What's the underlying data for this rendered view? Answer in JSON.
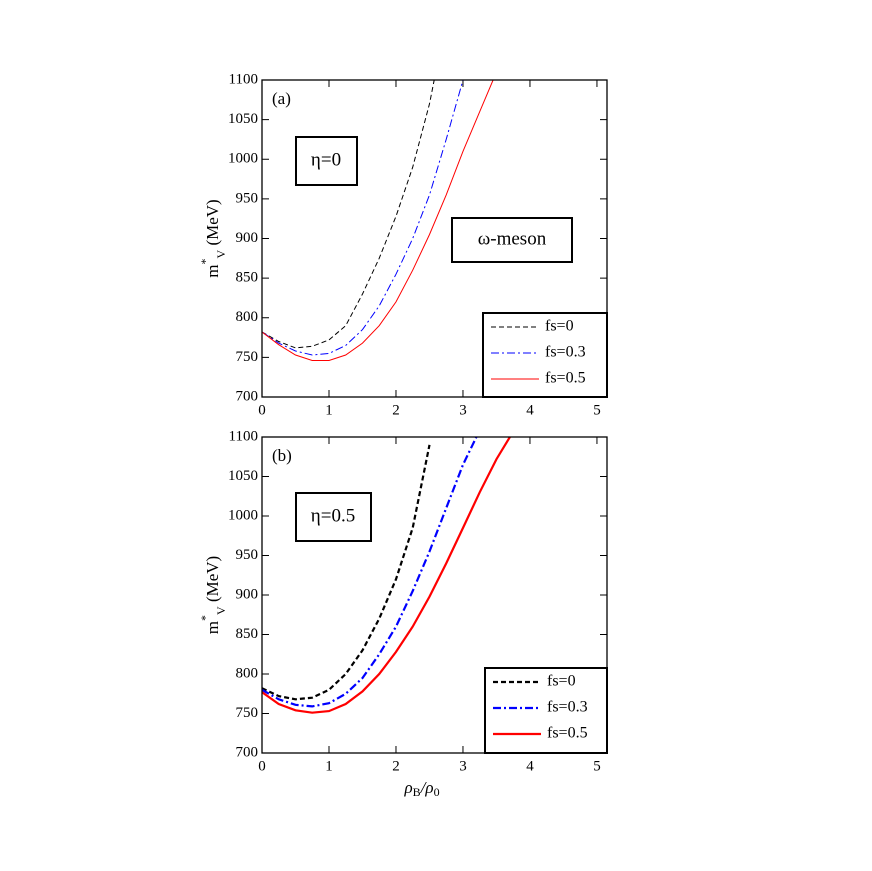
{
  "chart_data": [
    {
      "type": "line",
      "panel_label": "(a)",
      "annotations": [
        "η=0",
        "ω-meson"
      ],
      "ylabel": [
        "m",
        "*",
        "V",
        " (MeV)"
      ],
      "xlim": [
        0,
        5.15
      ],
      "ylim": [
        700,
        1100
      ],
      "xticks": [
        0,
        1,
        2,
        3,
        4,
        5
      ],
      "yticks": [
        700,
        750,
        800,
        850,
        900,
        950,
        1000,
        1050,
        1100
      ],
      "legend": "lower right",
      "line_width": 1,
      "series": [
        {
          "name": "fs=0",
          "color": "#000000",
          "dash": "dashed",
          "x": [
            0,
            0.25,
            0.5,
            0.75,
            1,
            1.25,
            1.5,
            1.75,
            2,
            2.25,
            2.5,
            2.57
          ],
          "values": [
            782,
            770,
            762,
            764,
            772,
            790,
            830,
            875,
            928,
            990,
            1070,
            1100
          ]
        },
        {
          "name": "fs=0.3",
          "color": "#0000ff",
          "dash": "dashdot",
          "x": [
            0,
            0.25,
            0.5,
            0.75,
            1,
            1.25,
            1.5,
            1.75,
            2,
            2.25,
            2.5,
            2.75,
            3
          ],
          "values": [
            782,
            768,
            758,
            753,
            755,
            765,
            785,
            815,
            855,
            900,
            955,
            1025,
            1100
          ]
        },
        {
          "name": "fs=0.5",
          "color": "#ff0000",
          "dash": "solid",
          "x": [
            0,
            0.25,
            0.5,
            0.75,
            1,
            1.25,
            1.5,
            1.75,
            2,
            2.25,
            2.5,
            2.75,
            3,
            3.25,
            3.45
          ],
          "values": [
            782,
            766,
            753,
            746,
            746,
            753,
            768,
            790,
            820,
            860,
            905,
            955,
            1010,
            1060,
            1100
          ]
        }
      ]
    },
    {
      "type": "line",
      "panel_label": "(b)",
      "annotations": [
        "η=0.5"
      ],
      "ylabel": [
        "m",
        "*",
        "V",
        " (MeV)"
      ],
      "xlabel": [
        "ρ",
        "B",
        "/ρ",
        "0"
      ],
      "xlim": [
        0,
        5.15
      ],
      "ylim": [
        700,
        1100
      ],
      "xticks": [
        0,
        1,
        2,
        3,
        4,
        5
      ],
      "yticks": [
        700,
        750,
        800,
        850,
        900,
        950,
        1000,
        1050,
        1100
      ],
      "legend": "lower right",
      "line_width": 2.2,
      "series": [
        {
          "name": "fs=0",
          "color": "#000000",
          "dash": "dashed",
          "x": [
            0,
            0.25,
            0.5,
            0.75,
            1,
            1.25,
            1.5,
            1.75,
            2,
            2.25,
            2.5
          ],
          "values": [
            782,
            772,
            768,
            770,
            780,
            800,
            830,
            870,
            920,
            985,
            1090
          ]
        },
        {
          "name": "fs=0.3",
          "color": "#0000ff",
          "dash": "dashdot",
          "x": [
            0,
            0.25,
            0.5,
            0.75,
            1,
            1.25,
            1.5,
            1.75,
            2,
            2.25,
            2.5,
            2.75,
            3,
            3.2
          ],
          "values": [
            780,
            768,
            761,
            759,
            763,
            775,
            795,
            825,
            860,
            905,
            955,
            1010,
            1065,
            1100
          ]
        },
        {
          "name": "fs=0.5",
          "color": "#ff0000",
          "dash": "solid",
          "x": [
            0,
            0.25,
            0.5,
            0.75,
            1,
            1.25,
            1.5,
            1.75,
            2,
            2.25,
            2.5,
            2.75,
            3,
            3.25,
            3.5,
            3.7
          ],
          "values": [
            777,
            762,
            754,
            751,
            753,
            762,
            778,
            800,
            828,
            860,
            898,
            940,
            985,
            1030,
            1072,
            1100
          ]
        }
      ]
    }
  ]
}
